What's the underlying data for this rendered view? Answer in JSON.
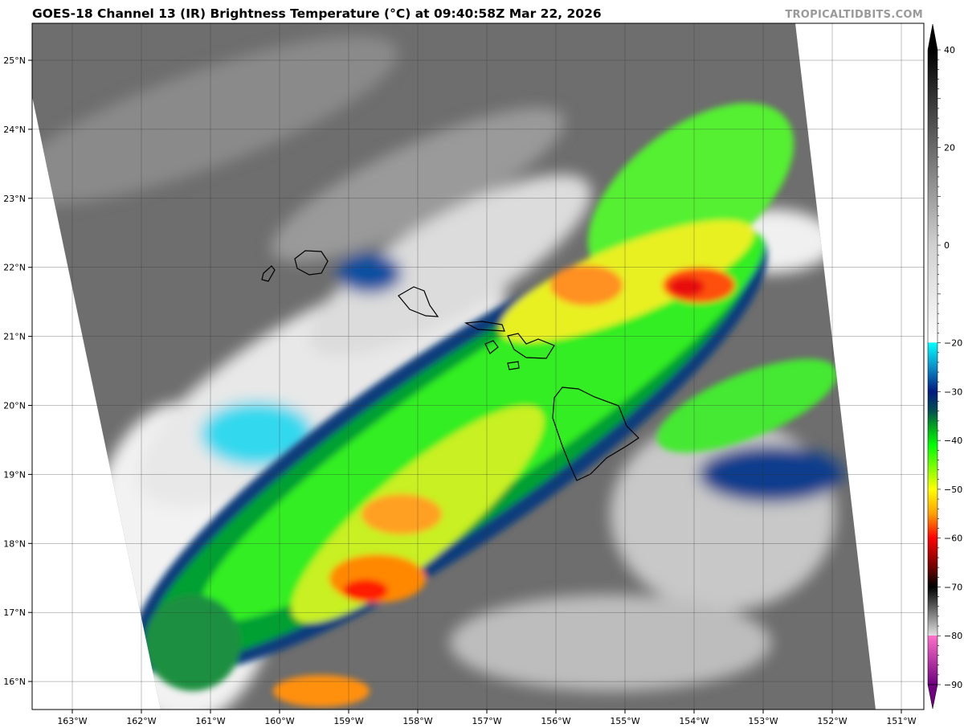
{
  "title": "GOES-18 Channel 13 (IR) Brightness Temperature (°C) at 09:40:58Z Mar 22, 2026",
  "watermark": "TROPICALTIDBITS.COM",
  "map": {
    "lon_ticks": [
      "163°W",
      "162°W",
      "161°W",
      "160°W",
      "159°W",
      "158°W",
      "157°W",
      "156°W",
      "155°W",
      "154°W",
      "153°W",
      "152°W",
      "151°W"
    ],
    "lon_values": [
      -163,
      -162,
      -161,
      -160,
      -159,
      -158,
      -157,
      -156,
      -155,
      -154,
      -153,
      -152,
      -151
    ],
    "lat_ticks": [
      "25°N",
      "24°N",
      "23°N",
      "22°N",
      "21°N",
      "20°N",
      "19°N",
      "18°N",
      "17°N",
      "16°N"
    ],
    "lat_values": [
      25,
      24,
      23,
      22,
      21,
      20,
      19,
      18,
      17,
      16
    ],
    "grid": true
  },
  "colorbar": {
    "ticks": [
      "40",
      "20",
      "0",
      "−20",
      "−30",
      "−40",
      "−50",
      "−60",
      "−70",
      "−80",
      "−90"
    ],
    "tick_values": [
      40,
      20,
      0,
      -20,
      -30,
      -40,
      -50,
      -60,
      -70,
      -80,
      -90
    ],
    "range": [
      -90,
      40
    ],
    "stops": [
      {
        "v": 40,
        "c": "#000000"
      },
      {
        "v": 20,
        "c": "#6a6a6a"
      },
      {
        "v": 0,
        "c": "#d0d0d0"
      },
      {
        "v": -19.9,
        "c": "#ffffff"
      },
      {
        "v": -20,
        "c": "#00ffff"
      },
      {
        "v": -25,
        "c": "#0a8fc8"
      },
      {
        "v": -30,
        "c": "#001a80"
      },
      {
        "v": -34,
        "c": "#005050"
      },
      {
        "v": -37,
        "c": "#00a020"
      },
      {
        "v": -41,
        "c": "#00ff00"
      },
      {
        "v": -50,
        "c": "#ffff00"
      },
      {
        "v": -55,
        "c": "#ffa000"
      },
      {
        "v": -60,
        "c": "#ff0000"
      },
      {
        "v": -66,
        "c": "#700000"
      },
      {
        "v": -70,
        "c": "#000000"
      },
      {
        "v": -79.9,
        "c": "#e0e0e0"
      },
      {
        "v": -80,
        "c": "#ff70c8"
      },
      {
        "v": -90,
        "c": "#700080"
      }
    ]
  }
}
